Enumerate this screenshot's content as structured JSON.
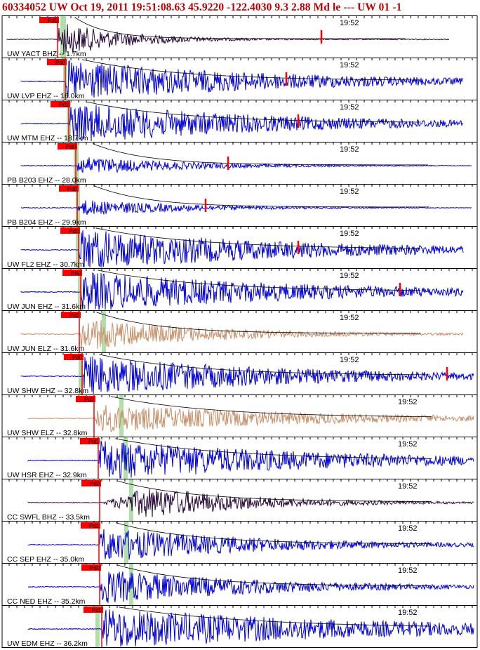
{
  "header": {
    "text": "60334052 UW Oct 19, 2011 19:51:08.63    45.9220 -122.4030  9.3 2.88 Md le --- UW 01  -1"
  },
  "chart_data": {
    "type": "seismogram-stack",
    "title": "60334052 UW Oct 19, 2011 19:51:08.63    45.9220 -122.4030  9.3 2.88 Md le --- UW 01  -1",
    "colors": {
      "trace": "#0000dd",
      "horizontal": "#c8906a",
      "broadband": "#2a0a3a",
      "pick": "#ff0000",
      "window": "#a8dca0",
      "coda": "#000000"
    },
    "channels": [
      {
        "label": "UW YACT BHZ -- 1.7km",
        "pick_label": "Pd0",
        "time_label": "19:52",
        "component": "broadband",
        "amplitude": 0.85,
        "duration": 0.18
      },
      {
        "label": "UW LVP EHZ -- 16.0km",
        "pick_label": "Pd0",
        "time_label": "19:52",
        "component": "vertical",
        "amplitude": 1.0,
        "duration": 0.55
      },
      {
        "label": "UW MTM EHZ -- 18.7km",
        "pick_label": "Pd2",
        "time_label": "19:52",
        "component": "vertical",
        "amplitude": 1.0,
        "duration": 0.55
      },
      {
        "label": "PB B203 EHZ -- 28.0km",
        "pick_label": "Pd0",
        "time_label": "19:52",
        "component": "vertical",
        "amplitude": 0.45,
        "duration": 0.3
      },
      {
        "label": "PB B204 EHZ -- 29.9km",
        "pick_label": "Pd0",
        "time_label": "19:52",
        "component": "vertical",
        "amplitude": 0.4,
        "duration": 0.3
      },
      {
        "label": "UW FL2 EHZ -- 30.7km",
        "pick_label": "Pd0",
        "time_label": "19:52",
        "component": "vertical",
        "amplitude": 1.0,
        "duration": 0.6
      },
      {
        "label": "UW JUN EHZ -- 31.6km",
        "pick_label": "Pd0",
        "time_label": "19:52",
        "component": "vertical",
        "amplitude": 1.0,
        "duration": 0.6
      },
      {
        "label": "UW JUN ELZ -- 31.6km",
        "pick_label": "Pd2",
        "time_label": "19:52",
        "component": "horizontal",
        "amplitude": 0.8,
        "duration": 0.35
      },
      {
        "label": "UW SHW EHZ -- 32.8km",
        "pick_label": "Pd0",
        "time_label": "19:52",
        "component": "vertical",
        "amplitude": 1.0,
        "duration": 0.55
      },
      {
        "label": "UW SHW ELZ -- 32.8km",
        "pick_label": "Pd2",
        "time_label": "19:52",
        "component": "horizontal",
        "amplitude": 0.7,
        "duration": 0.6
      },
      {
        "label": "UW HSR EHZ -- 32.9km",
        "pick_label": "Pd0",
        "time_label": "19:52",
        "component": "vertical",
        "amplitude": 1.0,
        "duration": 0.65
      },
      {
        "label": "CC SWFL BHZ -- 33.5km",
        "pick_label": "Pd0",
        "time_label": "19:52",
        "component": "broadband",
        "amplitude": 0.75,
        "duration": 0.45
      },
      {
        "label": "CC SEP EHZ -- 35.0km",
        "pick_label": "Pd2",
        "time_label": "19:52",
        "component": "vertical",
        "amplitude": 0.85,
        "duration": 0.45
      },
      {
        "label": "CC NED EHZ -- 35.2km",
        "pick_label": "Pd0",
        "time_label": "19:52",
        "component": "vertical",
        "amplitude": 0.85,
        "duration": 0.45
      },
      {
        "label": "UW EDM EHZ -- 36.2km",
        "pick_label": "Pd0",
        "time_label": "19:52",
        "component": "vertical",
        "amplitude": 1.0,
        "duration": 0.8
      }
    ]
  }
}
